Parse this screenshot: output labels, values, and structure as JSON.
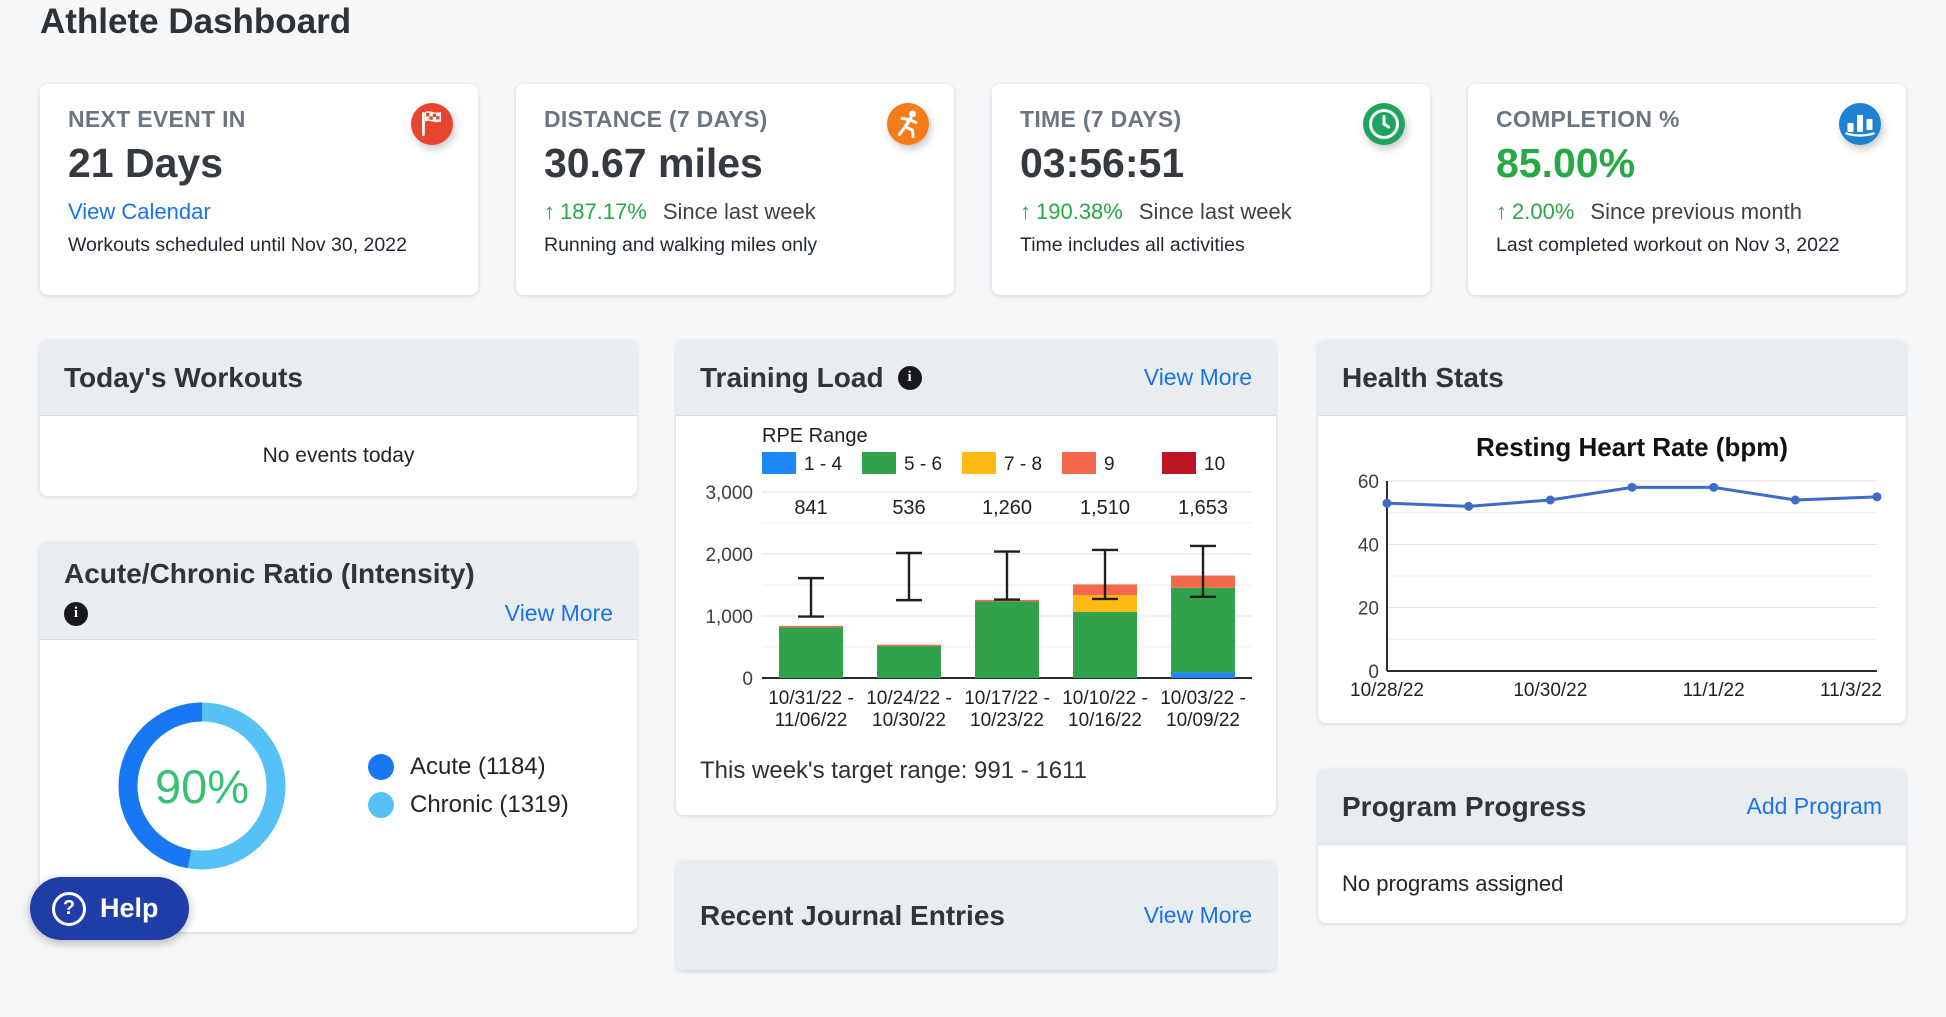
{
  "title": "Athlete Dashboard",
  "stat_cards": [
    {
      "label": "NEXT EVENT IN",
      "value": "21 Days",
      "link": "View Calendar",
      "caption": "Workouts scheduled until Nov 30, 2022",
      "icon": "finish-flag-icon"
    },
    {
      "label": "DISTANCE (7 DAYS)",
      "value": "30.67 miles",
      "delta": "187.17%",
      "delta_note": "Since last week",
      "caption": "Running and walking miles only",
      "icon": "runner-icon"
    },
    {
      "label": "TIME (7 DAYS)",
      "value": "03:56:51",
      "delta": "190.38%",
      "delta_note": "Since last week",
      "caption": "Time includes all activities",
      "icon": "clock-icon"
    },
    {
      "label": "COMPLETION %",
      "value": "85.00%",
      "delta": "2.00%",
      "delta_note": "Since previous month",
      "caption": "Last completed workout on Nov 3, 2022",
      "icon": "bar-chart-icon"
    }
  ],
  "cards": {
    "todays_workouts": {
      "title": "Today's Workouts",
      "empty_text": "No events today"
    },
    "acute_chronic": {
      "title": "Acute/Chronic Ratio (Intensity)",
      "view_more": "View More"
    },
    "training_load": {
      "title": "Training Load",
      "view_more": "View More",
      "footer": "This week's target range: 991 - 1611"
    },
    "health_stats": {
      "title": "Health Stats"
    },
    "journal": {
      "title": "Recent Journal Entries",
      "view_more": "View More"
    },
    "program_progress": {
      "title": "Program Progress",
      "action": "Add Program",
      "empty_text": "No programs assigned"
    }
  },
  "help": {
    "label": "Help"
  },
  "colors": {
    "link": "#1a73e8",
    "positive_green": "#28a745",
    "acute_blue": "#1877f2",
    "chronic_blue": "#55c1f6"
  },
  "chart_data": [
    {
      "type": "bar",
      "stacked": true,
      "title": "Training Load",
      "legend_title": "RPE Range",
      "legend_position": "top",
      "categories": [
        "10/31/22 - 11/06/22",
        "10/24/22 - 10/30/22",
        "10/17/22 - 10/23/22",
        "10/10/22 - 10/16/22",
        "10/03/22 - 10/09/22"
      ],
      "series": [
        {
          "name": "1 - 4",
          "color": "#1e88fa",
          "values": [
            0,
            0,
            0,
            0,
            90
          ]
        },
        {
          "name": "5 - 6",
          "color": "#31a24c",
          "values": [
            820,
            515,
            1235,
            1065,
            1365
          ]
        },
        {
          "name": "7 - 8",
          "color": "#fcba12",
          "values": [
            0,
            0,
            0,
            270,
            0
          ]
        },
        {
          "name": "9",
          "color": "#f4694b",
          "values": [
            21,
            21,
            25,
            175,
            198
          ]
        },
        {
          "name": "10",
          "color": "#bd1426",
          "values": [
            0,
            0,
            0,
            0,
            0
          ]
        }
      ],
      "totals": [
        841,
        536,
        1260,
        1510,
        1653
      ],
      "totals_labels": [
        "841",
        "536",
        "1,260",
        "1,510",
        "1,653"
      ],
      "error_bars": [
        {
          "low": 991,
          "high": 1611
        },
        {
          "low": 1256,
          "high": 2016
        },
        {
          "low": 1265,
          "high": 2040
        },
        {
          "low": 1275,
          "high": 2065
        },
        {
          "low": 1310,
          "high": 2130
        }
      ],
      "ylim": [
        0,
        3000
      ],
      "yticks": [
        0,
        1000,
        2000,
        3000
      ],
      "ytick_labels": [
        "0",
        "1,000",
        "2,000",
        "3,000"
      ],
      "grid": "horizontal",
      "target_range_note": "This week's target range: 991 - 1611"
    },
    {
      "type": "line",
      "title": "Resting Heart Rate (bpm)",
      "x": [
        "10/28/22",
        "10/29/22",
        "10/30/22",
        "10/31/22",
        "11/1/22",
        "11/2/22",
        "11/3/22"
      ],
      "values": [
        53,
        52,
        54,
        58,
        58,
        54,
        55
      ],
      "xticks": [
        0,
        2,
        4,
        6
      ],
      "ylim": [
        0,
        62
      ],
      "yticks": [
        0,
        20,
        40,
        60
      ],
      "ytick_labels": [
        "0",
        "20",
        "40",
        "60"
      ],
      "line_color": "#3d6cc8",
      "grid": "horizontal"
    },
    {
      "type": "pie",
      "subtype": "donut",
      "title": "Acute/Chronic Ratio (Intensity)",
      "center_label": "90%",
      "center_color": "#38c172",
      "slices": [
        {
          "label": "Acute",
          "value": 1184,
          "color": "#1877f2"
        },
        {
          "label": "Chronic",
          "value": 1319,
          "color": "#55c1f6"
        }
      ],
      "legend_labels": [
        "Acute (1184)",
        "Chronic (1319)"
      ]
    }
  ]
}
